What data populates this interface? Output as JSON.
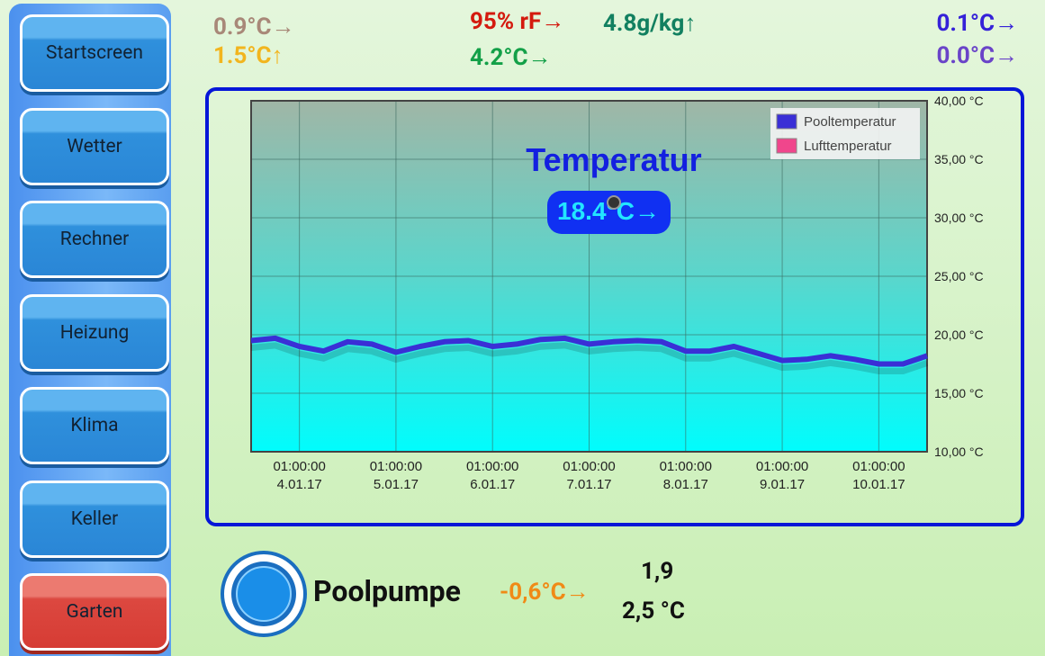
{
  "nav": {
    "buttons": [
      "Startscreen",
      "Wetter",
      "Rechner",
      "Heizung",
      "Klima",
      "Keller",
      "Garten"
    ],
    "active": 6
  },
  "header": {
    "left": [
      "0.9°C→",
      "1.5°C↑"
    ],
    "center": [
      "95% rF→",
      "4.8g/kg↑",
      "4.2°C→"
    ],
    "right": [
      "0.1°C→",
      "0.0°C→"
    ]
  },
  "chart_data": {
    "type": "line",
    "title": "Temperatur",
    "current": "18.4°C→",
    "x": [
      3.5,
      3.75,
      4,
      4.25,
      4.5,
      4.75,
      5,
      5.25,
      5.5,
      5.75,
      6,
      6.25,
      6.5,
      6.75,
      7,
      7.25,
      7.5,
      7.75,
      8,
      8.25,
      8.5,
      8.75,
      9,
      9.25,
      9.5,
      9.75,
      10,
      10.25,
      10.5
    ],
    "series": [
      {
        "name": "Pooltemperatur",
        "color": "#3a2fd6",
        "values": [
          19.5,
          19.7,
          19.0,
          18.6,
          19.4,
          19.2,
          18.5,
          19.0,
          19.4,
          19.5,
          19.0,
          19.2,
          19.6,
          19.7,
          19.2,
          19.4,
          19.5,
          19.4,
          18.6,
          18.6,
          19.0,
          18.4,
          17.8,
          17.9,
          18.2,
          17.9,
          17.5,
          17.5,
          18.2
        ]
      },
      {
        "name": "Lufttemperatur",
        "color": "#f0468c",
        "values": [
          null,
          null,
          null,
          null,
          null,
          null,
          null,
          null,
          null,
          null,
          null,
          null,
          null,
          null,
          null,
          null,
          null,
          null,
          null,
          null,
          null,
          null,
          null,
          null,
          null,
          null,
          null,
          null,
          null
        ]
      }
    ],
    "xlim": [
      3.5,
      10.5
    ],
    "xticks": [
      {
        "value": 4,
        "label": [
          "01:00:00",
          "4.01.17"
        ]
      },
      {
        "value": 5,
        "label": [
          "01:00:00",
          "5.01.17"
        ]
      },
      {
        "value": 6,
        "label": [
          "01:00:00",
          "6.01.17"
        ]
      },
      {
        "value": 7,
        "label": [
          "01:00:00",
          "7.01.17"
        ]
      },
      {
        "value": 8,
        "label": [
          "01:00:00",
          "8.01.17"
        ]
      },
      {
        "value": 9,
        "label": [
          "01:00:00",
          "9.01.17"
        ]
      },
      {
        "value": 10,
        "label": [
          "01:00:00",
          "10.01.17"
        ]
      }
    ],
    "ylim": [
      10,
      40
    ],
    "yticks": [
      {
        "value": 10,
        "label": "10,00 °C"
      },
      {
        "value": 15,
        "label": "15,00 °C"
      },
      {
        "value": 20,
        "label": "20,00 °C"
      },
      {
        "value": 25,
        "label": "25,00 °C"
      },
      {
        "value": 30,
        "label": "30,00 °C"
      },
      {
        "value": 35,
        "label": "35,00 °C"
      },
      {
        "value": 40,
        "label": "40,00 °C"
      }
    ],
    "grid": true,
    "legend": "upper right"
  },
  "footer": {
    "label": "Poolpumpe",
    "delta": "-0,6°C→",
    "value1": "1,9",
    "value2": "2,5 °C"
  }
}
